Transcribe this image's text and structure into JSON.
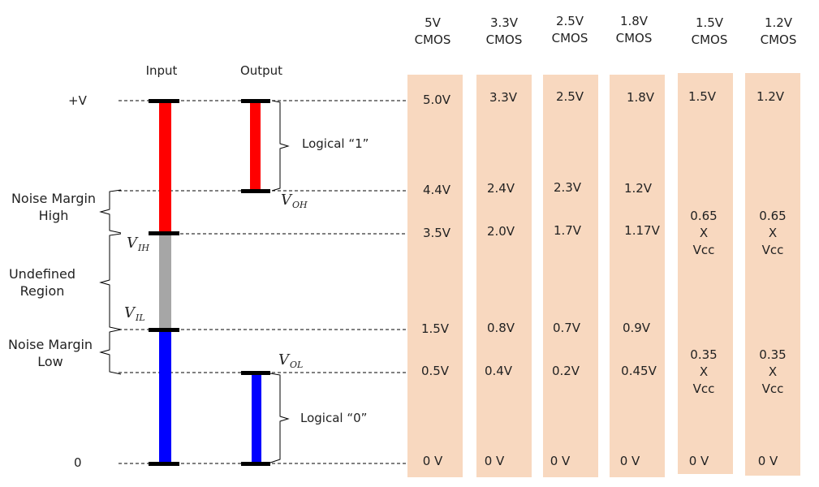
{
  "diagram": {
    "input_label": "Input",
    "output_label": "Output",
    "vcc_label": "+V",
    "ground_label": "0",
    "logical_one": "Logical “1”",
    "logical_zero": "Logical “0”",
    "noise_margin_high": [
      "Noise Margin",
      "High"
    ],
    "undefined_region": [
      "Undefined",
      "Region"
    ],
    "noise_margin_low": [
      "Noise Margin",
      "Low"
    ],
    "voh_symbol": {
      "base": "V",
      "sub": "OH"
    },
    "vih_symbol": {
      "base": "V",
      "sub": "IH"
    },
    "vil_symbol": {
      "base": "V",
      "sub": "IL"
    },
    "vol_symbol": {
      "base": "V",
      "sub": "OL"
    },
    "colors": {
      "logic_high": "#ff0000",
      "undefined": "#a6a6a6",
      "logic_low": "#0000ff",
      "column_fill": "#f8d8bf",
      "cap": "#000000"
    }
  },
  "columns": [
    {
      "name": "5V",
      "family": "CMOS",
      "vcc": "5.0V",
      "voh": "4.4V",
      "vih": "3.5V",
      "vil": "1.5V",
      "vol": "0.5V",
      "gnd": "0 V"
    },
    {
      "name": "3.3V",
      "family": "CMOS",
      "vcc": "3.3V",
      "voh": "2.4V",
      "vih": "2.0V",
      "vil": "0.8V",
      "vol": "0.4V",
      "gnd": "0 V"
    },
    {
      "name": "2.5V",
      "family": "CMOS",
      "vcc": "2.5V",
      "voh": "2.3V",
      "vih": "1.7V",
      "vil": "0.7V",
      "vol": "0.2V",
      "gnd": "0 V"
    },
    {
      "name": "1.8V",
      "family": "CMOS",
      "vcc": "1.8V",
      "voh": "1.2V",
      "vih": "1.17V",
      "vil": "0.9V",
      "vol": "0.45V",
      "gnd": "0 V"
    },
    {
      "name": "1.5V",
      "family": "CMOS",
      "vcc": "1.5V",
      "vih_lines": [
        "0.65",
        "X",
        "Vcc"
      ],
      "vil_lines": [
        "0.35",
        "X",
        "Vcc"
      ],
      "gnd": "0 V"
    },
    {
      "name": "1.2V",
      "family": "CMOS",
      "vcc": "1.2V",
      "vih_lines": [
        "0.65",
        "X",
        "Vcc"
      ],
      "vil_lines": [
        "0.35",
        "X",
        "Vcc"
      ],
      "gnd": "0 V"
    }
  ]
}
